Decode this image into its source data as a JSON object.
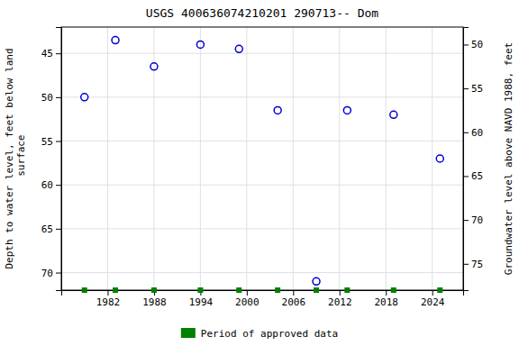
{
  "chart_data": {
    "type": "scatter",
    "title": "USGS 400636074210201 290713-- Dom",
    "y_label": "Depth to water level, feet below land\n surface",
    "y2_label": "Groundwater level above NAVD 1988, feet",
    "xlim": [
      1976,
      2028
    ],
    "xticks": [
      1982,
      1988,
      1994,
      2000,
      2006,
      2012,
      2018,
      2024
    ],
    "ylim": [
      72,
      42
    ],
    "yticks": [
      45,
      50,
      55,
      60,
      65,
      70
    ],
    "y2lim": [
      78,
      48
    ],
    "y2ticks": [
      50,
      55,
      60,
      65,
      70,
      75
    ],
    "grid": true,
    "series": [
      {
        "color": "#0000cc",
        "marker": "circle",
        "x": [
          1979,
          1983,
          1988,
          1994,
          1999,
          2004,
          2009,
          2013,
          2019,
          2025
        ],
        "values": [
          50.0,
          43.5,
          46.5,
          44.0,
          44.5,
          51.5,
          71.0,
          51.5,
          52.0,
          57.0
        ]
      },
      {
        "name": "Period of approved data",
        "color": "#008000",
        "marker": "square",
        "x": [
          1979,
          1983,
          1988,
          1994,
          1999,
          2004,
          2009,
          2013,
          2019,
          2025
        ],
        "values": [
          72,
          72,
          72,
          72,
          72,
          72,
          72,
          72,
          72,
          72
        ]
      }
    ]
  }
}
